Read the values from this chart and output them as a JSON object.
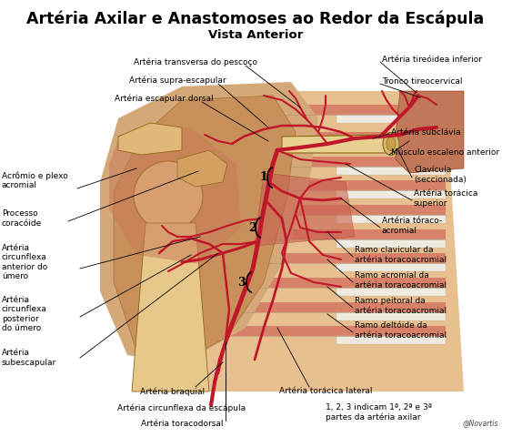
{
  "title": "Artéria Axilar e Anastomoses ao Redor da Escápula",
  "subtitle": "Vista Anterior",
  "background_color": "#ffffff",
  "title_fontsize": 12.5,
  "subtitle_fontsize": 9.5,
  "label_fontsize": 6.5,
  "fig_width": 5.63,
  "fig_height": 4.8,
  "artery_color": "#c0182a",
  "bone_color": "#d4956a",
  "bone_light": "#e8c88a",
  "bone_edge": "#8B6914",
  "muscle_color": "#c85040",
  "muscle_bg": "#d87060",
  "rib_color": "#dfc090",
  "rib_alt": "#c8a870",
  "white_rib": "#f0ece4",
  "novartis_text": "@Novartis"
}
